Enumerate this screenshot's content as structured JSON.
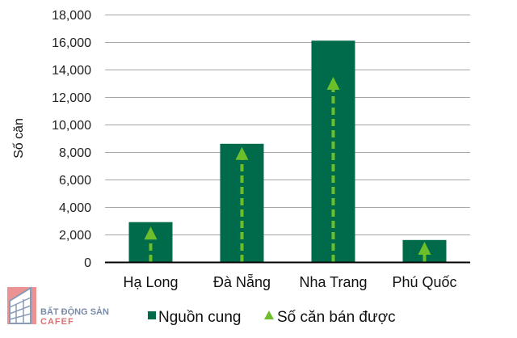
{
  "chart_data": {
    "type": "bar",
    "title": "",
    "xlabel": "",
    "ylabel": "Số căn",
    "ylim": [
      0,
      18000
    ],
    "yticks": [
      0,
      2000,
      4000,
      6000,
      8000,
      10000,
      12000,
      14000,
      16000,
      18000
    ],
    "ytick_labels": [
      "0",
      "2,000",
      "4,000",
      "6,000",
      "8,000",
      "10,000",
      "12,000",
      "14,000",
      "16,000",
      "18,000"
    ],
    "grid": true,
    "categories": [
      "Hạ Long",
      "Đà Nẵng",
      "Nha Trang",
      "Phú Quốc"
    ],
    "series": [
      {
        "name": "Nguồn cung",
        "kind": "bar",
        "color": "#006b4a",
        "values": [
          2900,
          8600,
          16100,
          1600
        ]
      },
      {
        "name": "Số căn bán được",
        "kind": "triangle-marker-dashed-arrow",
        "color": "#6cbf2a",
        "values": [
          2100,
          7900,
          13000,
          1000
        ]
      }
    ],
    "legend_position": "bottom"
  },
  "logo": {
    "line1": "BẤT ĐỘNG SẢN",
    "line2": "CAFEF"
  }
}
